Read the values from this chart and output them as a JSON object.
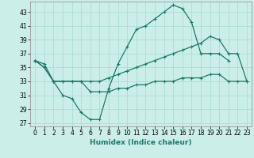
{
  "title": "",
  "xlabel": "Humidex (Indice chaleur)",
  "background_color": "#cceee8",
  "grid_color": "#aaddd5",
  "line_color": "#1a7a6a",
  "xlim": [
    -0.5,
    23.5
  ],
  "ylim": [
    26.5,
    44.5
  ],
  "yticks": [
    27,
    29,
    31,
    33,
    35,
    37,
    39,
    41,
    43
  ],
  "xticks": [
    0,
    1,
    2,
    3,
    4,
    5,
    6,
    7,
    8,
    9,
    10,
    11,
    12,
    13,
    14,
    15,
    16,
    17,
    18,
    19,
    20,
    21,
    22,
    23
  ],
  "line1_x": [
    0,
    1,
    2,
    3,
    4,
    5,
    6,
    7,
    8,
    9,
    10,
    11,
    12,
    13,
    14,
    15,
    16,
    17,
    18,
    19,
    20,
    21
  ],
  "line1_y": [
    36,
    35,
    33,
    31,
    30.5,
    28.5,
    27.5,
    27.5,
    32,
    35.5,
    38,
    40.5,
    41,
    42,
    43,
    44,
    43.5,
    41.5,
    37,
    37,
    37,
    36
  ],
  "line2_x": [
    0,
    1,
    2,
    3,
    4,
    5,
    6,
    7,
    8,
    9,
    10,
    11,
    12,
    13,
    14,
    15,
    16,
    17,
    18,
    19,
    20,
    21,
    22,
    23
  ],
  "line2_y": [
    36,
    35.5,
    33,
    33,
    33,
    33,
    33,
    33,
    33.5,
    34,
    34.5,
    35,
    35.5,
    36,
    36.5,
    37,
    37.5,
    38,
    38.5,
    39.5,
    39,
    37,
    37,
    33
  ],
  "line3_x": [
    0,
    1,
    2,
    3,
    4,
    5,
    6,
    7,
    8,
    9,
    10,
    11,
    12,
    13,
    14,
    15,
    16,
    17,
    18,
    19,
    20,
    21,
    22,
    23
  ],
  "line3_y": [
    36,
    35,
    33,
    33,
    33,
    33,
    31.5,
    31.5,
    31.5,
    32,
    32,
    32.5,
    32.5,
    33,
    33,
    33,
    33.5,
    33.5,
    33.5,
    34,
    34,
    33,
    33,
    33
  ],
  "tick_fontsize": 5.5,
  "xlabel_fontsize": 6.5,
  "linewidth": 0.9,
  "markersize": 3,
  "markeredgewidth": 0.8
}
